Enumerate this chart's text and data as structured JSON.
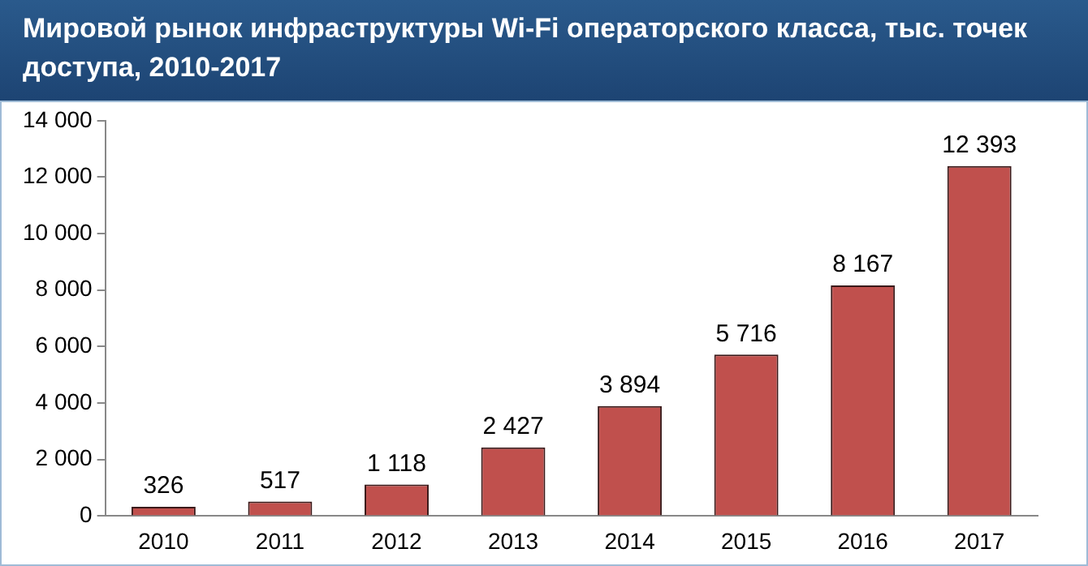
{
  "chart_data": {
    "type": "bar",
    "title": "Мировой рынок инфраструктуры Wi-Fi операторского класса, тыс. точек доступа, 2010-2017",
    "categories": [
      "2010",
      "2011",
      "2012",
      "2013",
      "2014",
      "2015",
      "2016",
      "2017"
    ],
    "values": [
      326,
      517,
      1118,
      2427,
      3894,
      5716,
      8167,
      12393
    ],
    "value_labels": [
      "326",
      "517",
      "1 118",
      "2 427",
      "3 894",
      "5 716",
      "8 167",
      "12 393"
    ],
    "color": "#c0504d",
    "ylim": [
      0,
      14000
    ],
    "yticks": [
      {
        "value": 0,
        "label": "0"
      },
      {
        "value": 2000,
        "label": "2 000"
      },
      {
        "value": 4000,
        "label": "4 000"
      },
      {
        "value": 6000,
        "label": "6 000"
      },
      {
        "value": 8000,
        "label": "8 000"
      },
      {
        "value": 10000,
        "label": "10 000"
      },
      {
        "value": 12000,
        "label": "12 000"
      },
      {
        "value": 14000,
        "label": "14 000"
      }
    ],
    "grid": false,
    "legend": false
  }
}
